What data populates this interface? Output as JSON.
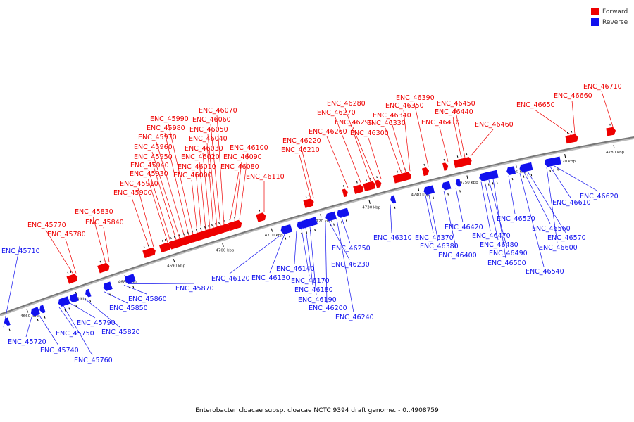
{
  "legend": {
    "forward_label": "Forward",
    "reverse_label": "Reverse",
    "forward_color": "#ee0000",
    "reverse_color": "#1111ee"
  },
  "caption": "Enterobacter cloacae subsp. cloacae NCTC 9394 draft genome. - 0..4908759",
  "colors": {
    "forward": "#ee0000",
    "reverse": "#1111ee",
    "axis": "#777777"
  },
  "ticks": [
    "4660 kbp",
    "4670 kbp",
    "4680 kbp",
    "4690 kbp",
    "4700 kbp",
    "4710 kbp",
    "4720 kbp",
    "4730 kbp",
    "4740 kbp",
    "4750 kbp",
    "4760 kbp",
    "4770 kbp",
    "4780 kbp"
  ],
  "forward_genes": [
    "ENC_45770",
    "ENC_45780",
    "ENC_45830",
    "ENC_45840",
    "ENC_45900",
    "ENC_45910",
    "ENC_45930",
    "ENC_45940",
    "ENC_45950",
    "ENC_45960",
    "ENC_45970",
    "ENC_45980",
    "ENC_45990",
    "ENC_46000",
    "ENC_46010",
    "ENC_46020",
    "ENC_46030",
    "ENC_46040",
    "ENC_46050",
    "ENC_46060",
    "ENC_46070",
    "ENC_46080",
    "ENC_46090",
    "ENC_46100",
    "ENC_46110",
    "ENC_46210",
    "ENC_46220",
    "ENC_46260",
    "ENC_46270",
    "ENC_46280",
    "ENC_46290",
    "ENC_46300",
    "ENC_46330",
    "ENC_46340",
    "ENC_46350",
    "ENC_46390",
    "ENC_46410",
    "ENC_46440",
    "ENC_46450",
    "ENC_46460",
    "ENC_46650",
    "ENC_46660",
    "ENC_46710"
  ],
  "reverse_genes": [
    "ENC_45710",
    "ENC_45720",
    "ENC_45740",
    "ENC_45750",
    "ENC_45760",
    "ENC_45790",
    "ENC_45820",
    "ENC_45850",
    "ENC_45860",
    "ENC_45870",
    "ENC_46120",
    "ENC_46130",
    "ENC_46140",
    "ENC_46170",
    "ENC_46180",
    "ENC_46190",
    "ENC_46200",
    "ENC_46230",
    "ENC_46240",
    "ENC_46250",
    "ENC_46310",
    "ENC_46370",
    "ENC_46380",
    "ENC_46400",
    "ENC_46420",
    "ENC_46470",
    "ENC_46480",
    "ENC_46490",
    "ENC_46500",
    "ENC_46520",
    "ENC_46540",
    "ENC_46560",
    "ENC_46570",
    "ENC_46600",
    "ENC_46610",
    "ENC_46620"
  ]
}
